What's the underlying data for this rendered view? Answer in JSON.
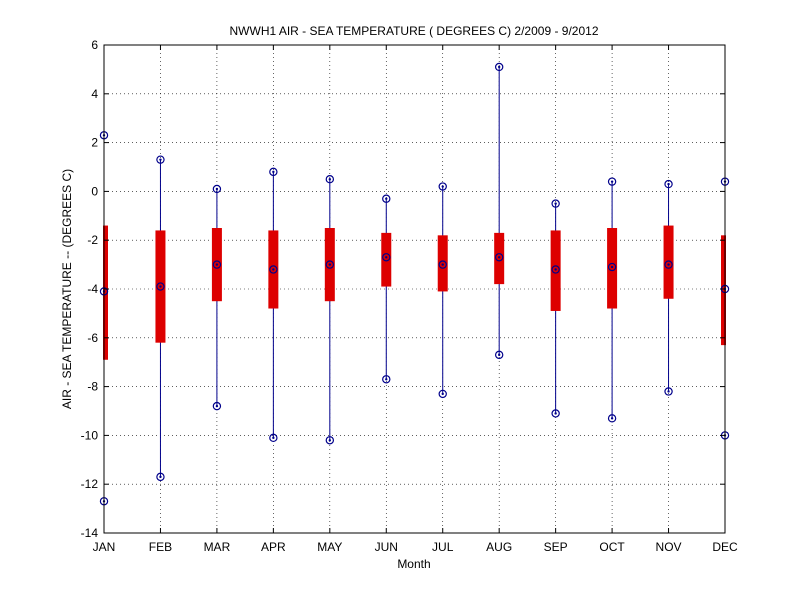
{
  "chart_data": {
    "type": "box",
    "title": "NWWH1  AIR - SEA TEMPERATURE ( DEGREES C) 2/2009 - 9/2012",
    "xlabel": "Month",
    "ylabel": "AIR - SEA TEMPERATURE -- (DEGREES C)",
    "ylim": [
      -14,
      6
    ],
    "yticks": [
      -14,
      -12,
      -10,
      -8,
      -6,
      -4,
      -2,
      0,
      2,
      4,
      6
    ],
    "grid": true,
    "categories": [
      "JAN",
      "FEB",
      "MAR",
      "APR",
      "MAY",
      "JUN",
      "JUL",
      "AUG",
      "SEP",
      "OCT",
      "NOV",
      "DEC"
    ],
    "min": [
      -12.7,
      -11.7,
      -8.8,
      -10.1,
      -10.2,
      -7.7,
      -8.3,
      -6.7,
      -9.1,
      -9.3,
      -8.2,
      -10.0
    ],
    "q1": [
      -6.9,
      -6.2,
      -4.5,
      -4.8,
      -4.5,
      -3.9,
      -4.1,
      -3.8,
      -4.9,
      -4.8,
      -4.4,
      -6.3
    ],
    "median": [
      -4.1,
      -3.9,
      -3.0,
      -3.2,
      -3.0,
      -2.7,
      -3.0,
      -2.7,
      -3.2,
      -3.1,
      -3.0,
      -4.0
    ],
    "q3": [
      -1.4,
      -1.6,
      -1.5,
      -1.6,
      -1.5,
      -1.7,
      -1.8,
      -1.7,
      -1.6,
      -1.5,
      -1.4,
      -1.8
    ],
    "max": [
      2.3,
      1.3,
      0.1,
      0.8,
      0.5,
      -0.3,
      0.2,
      5.1,
      -0.5,
      0.4,
      0.3,
      0.4
    ],
    "colors": {
      "box": "#dd0000",
      "whisker": "#00008b",
      "grid": "#000000"
    }
  }
}
